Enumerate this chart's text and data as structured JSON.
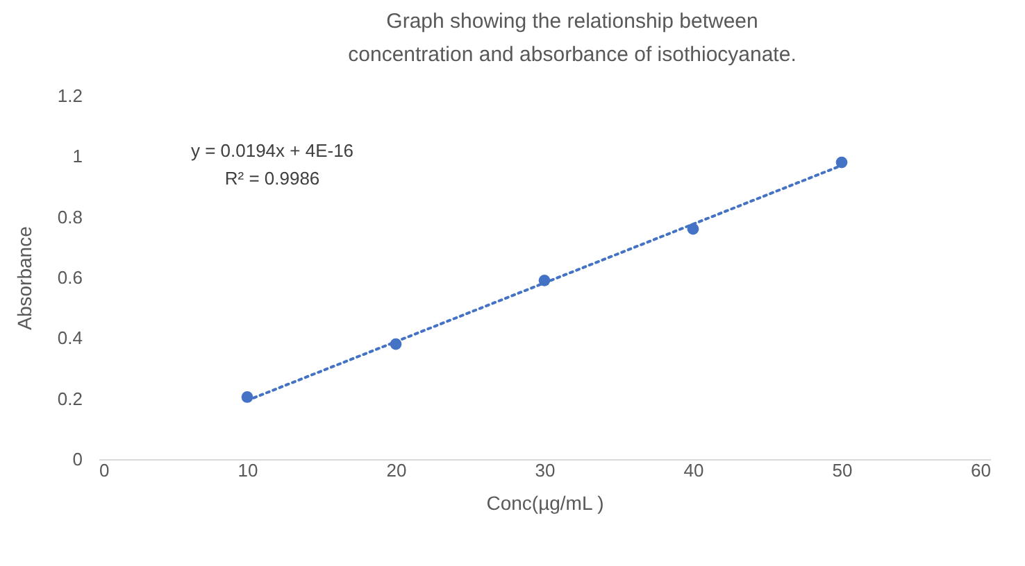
{
  "chart_data": {
    "type": "scatter",
    "title": "Graph showing the relationship between concentration and absorbance of isothiocyanate.",
    "xlabel": "Conc(µg/mL )",
    "ylabel": "Absorbance",
    "annotations": [
      "y = 0.0194x + 4E-16",
      "R² = 0.9986"
    ],
    "x": [
      10,
      20,
      30,
      40,
      50
    ],
    "series": [
      {
        "color": "#4472c4",
        "marker": "circle",
        "values": [
          0.205,
          0.38,
          0.59,
          0.76,
          0.98
        ]
      },
      {
        "type": "line",
        "color": "#4472c4",
        "marker": "none",
        "line_style": "dotted",
        "x": [
          10,
          50
        ],
        "values": [
          0.194,
          0.97
        ]
      }
    ],
    "xlim": [
      0,
      60
    ],
    "xticks": [
      0,
      10,
      20,
      30,
      40,
      50,
      60
    ],
    "ylim": [
      0,
      1.2
    ],
    "yticks": [
      0,
      0.2,
      0.4,
      0.6,
      0.8,
      1,
      1.2
    ],
    "grid": false
  }
}
